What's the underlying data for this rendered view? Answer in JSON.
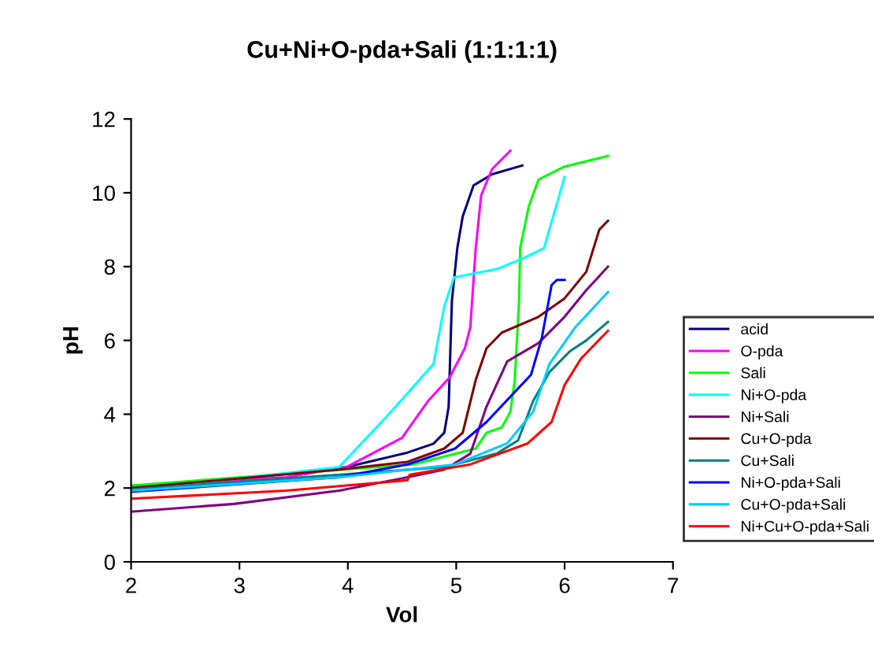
{
  "chart_data": {
    "type": "line",
    "title": "Cu+Ni+O-pda+Sali (1:1:1:1)",
    "xlabel": "Vol",
    "ylabel": "pH",
    "xlim": [
      2,
      7
    ],
    "xticks": [
      2,
      3,
      4,
      5,
      6,
      7
    ],
    "ylim": [
      0,
      12
    ],
    "yticks": [
      0,
      2,
      4,
      6,
      8,
      10,
      12
    ],
    "grid": false,
    "legend": "right",
    "marker": "none",
    "line_style": "solid",
    "series": [
      {
        "name": "acid",
        "color": "#000080",
        "x": [
          2.0,
          3.0,
          3.99,
          4.55,
          4.79,
          4.89,
          4.93,
          4.96,
          5.01,
          5.06,
          5.16,
          5.33,
          5.61
        ],
        "values": [
          2.04,
          2.25,
          2.57,
          2.96,
          3.2,
          3.5,
          4.2,
          7.07,
          8.5,
          9.36,
          10.2,
          10.5,
          10.74
        ]
      },
      {
        "name": "O-pda",
        "color": "#ff00ff",
        "x": [
          2.0,
          3.43,
          3.99,
          4.5,
          4.74,
          4.94,
          5.08,
          5.13,
          5.18,
          5.23,
          5.33,
          5.5
        ],
        "values": [
          2.05,
          2.29,
          2.57,
          3.36,
          4.36,
          5.0,
          5.79,
          6.36,
          8.5,
          9.93,
          10.64,
          11.14
        ]
      },
      {
        "name": "Sali",
        "color": "#00ff00",
        "x": [
          2.0,
          4.6,
          5.18,
          5.28,
          5.42,
          5.5,
          5.54,
          5.58,
          5.59,
          5.67,
          5.76,
          6.0,
          6.4
        ],
        "values": [
          2.07,
          2.64,
          3.07,
          3.5,
          3.64,
          4.07,
          4.93,
          7.07,
          8.5,
          9.64,
          10.36,
          10.71,
          11.0
        ]
      },
      {
        "name": "Ni+O-pda",
        "color": "#00ffff",
        "x": [
          2.0,
          3.92,
          4.4,
          4.79,
          4.89,
          4.98,
          5.37,
          5.61,
          5.81,
          6.0
        ],
        "values": [
          1.93,
          2.57,
          4.07,
          5.36,
          6.93,
          7.71,
          7.93,
          8.21,
          8.5,
          10.43
        ]
      },
      {
        "name": "Ni+Sali",
        "color": "#800080",
        "x": [
          2.0,
          2.95,
          3.92,
          4.55,
          4.89,
          5.13,
          5.28,
          5.47,
          5.76,
          6.0,
          6.2,
          6.4
        ],
        "values": [
          1.36,
          1.57,
          1.93,
          2.29,
          2.5,
          2.93,
          4.21,
          5.43,
          5.93,
          6.64,
          7.36,
          8.0
        ]
      },
      {
        "name": "Cu+O-pda",
        "color": "#800000",
        "x": [
          2.0,
          3.92,
          4.55,
          4.89,
          5.06,
          5.18,
          5.28,
          5.42,
          5.76,
          6.0,
          6.2,
          6.32,
          6.4
        ],
        "values": [
          2.0,
          2.5,
          2.71,
          3.07,
          3.5,
          4.93,
          5.79,
          6.21,
          6.64,
          7.14,
          7.86,
          9.0,
          9.24
        ]
      },
      {
        "name": "Cu+Sali",
        "color": "#008080",
        "x": [
          2.0,
          3.92,
          4.89,
          5.37,
          5.57,
          5.71,
          5.86,
          6.05,
          6.2,
          6.4
        ],
        "values": [
          1.96,
          2.36,
          2.57,
          2.93,
          3.29,
          4.36,
          5.14,
          5.71,
          6.0,
          6.5
        ]
      },
      {
        "name": "Ni+O-pda+Sali",
        "color": "#0000ff",
        "x": [
          2.0,
          3.92,
          4.55,
          4.99,
          5.28,
          5.69,
          5.79,
          5.88,
          5.93,
          6.0
        ],
        "values": [
          1.9,
          2.29,
          2.64,
          3.07,
          3.79,
          5.07,
          6.07,
          7.5,
          7.64,
          7.64
        ]
      },
      {
        "name": "Cu+O-pda+Sali",
        "color": "#00ccff",
        "x": [
          2.0,
          3.92,
          4.99,
          5.47,
          5.71,
          5.86,
          6.1,
          6.4
        ],
        "values": [
          1.93,
          2.29,
          2.64,
          3.21,
          4.07,
          5.36,
          6.36,
          7.31
        ]
      },
      {
        "name": "Ni+Cu+O-pda+Sali",
        "color": "#ff0000",
        "x": [
          2.0,
          3.43,
          4.55,
          4.57,
          5.13,
          5.66,
          5.88,
          6.0,
          6.15,
          6.4
        ],
        "values": [
          1.71,
          1.93,
          2.21,
          2.36,
          2.64,
          3.21,
          3.79,
          4.79,
          5.5,
          6.26
        ]
      }
    ]
  }
}
